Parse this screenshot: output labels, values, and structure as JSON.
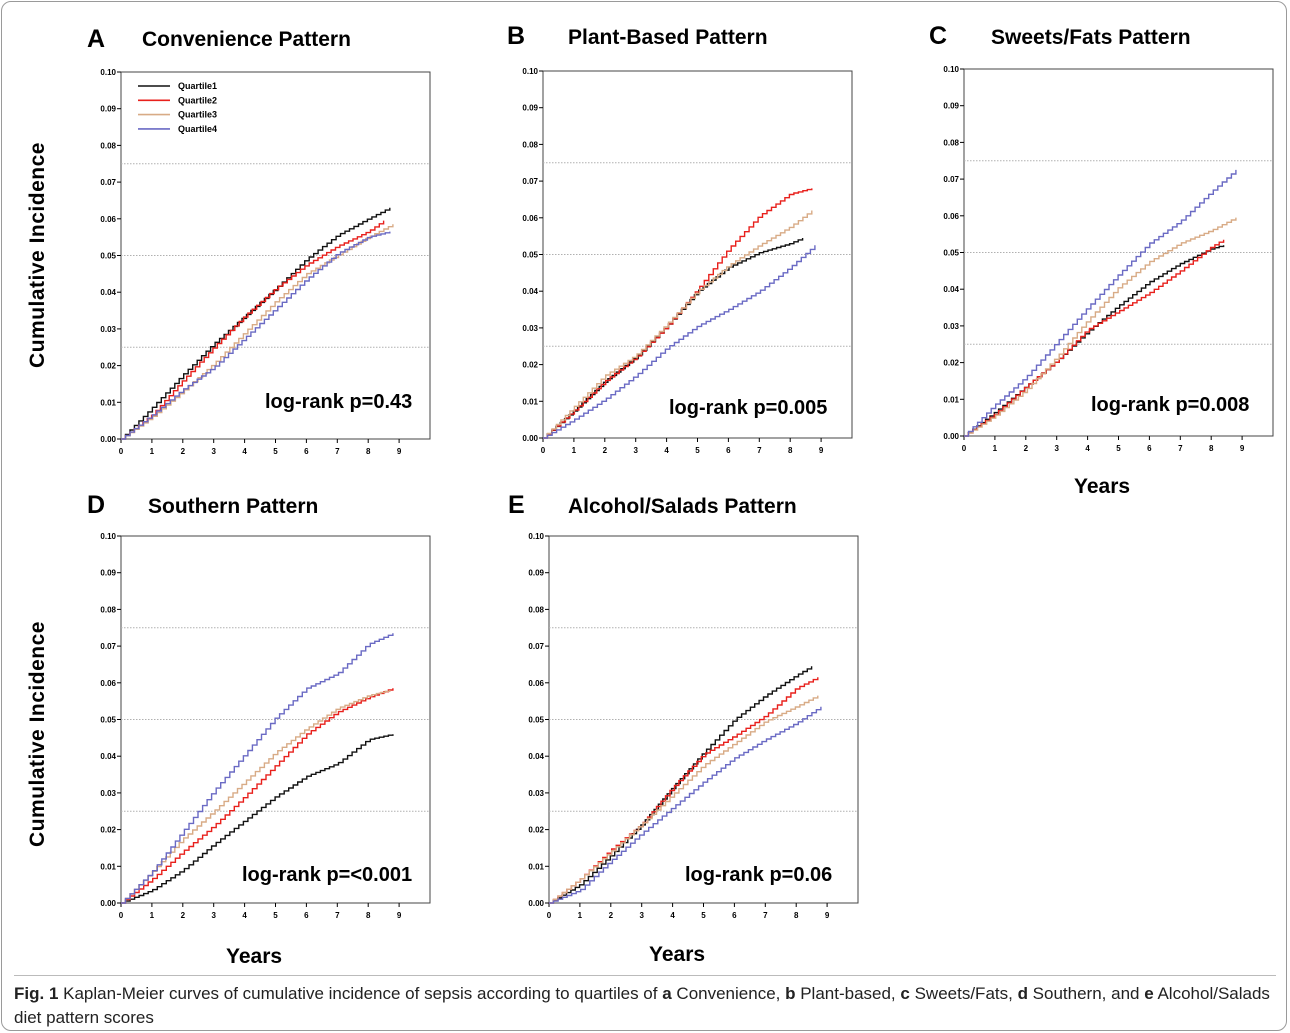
{
  "caption": {
    "label": "Fig. 1",
    "parts": [
      {
        "t": " Kaplan-Meier curves of cumulative incidence of sepsis according to quartiles of ",
        "b": false
      },
      {
        "t": "a",
        "b": true
      },
      {
        "t": " Convenience, ",
        "b": false
      },
      {
        "t": "b",
        "b": true
      },
      {
        "t": " Plant-based, ",
        "b": false
      },
      {
        "t": "c",
        "b": true
      },
      {
        "t": " Sweets/Fats, ",
        "b": false
      },
      {
        "t": "d",
        "b": true
      },
      {
        "t": " Southern, and ",
        "b": false
      },
      {
        "t": "e",
        "b": true
      },
      {
        "t": " Alcohol/Salads diet pattern scores",
        "b": false
      }
    ]
  },
  "axis_labels": {
    "y_top": "Cumulative Incidence",
    "y_bottom": "Cumulative Incidence",
    "x_c": "Years",
    "x_d": "Years",
    "x_e": "Years"
  },
  "colors": {
    "Quartile1": "#111111",
    "Quartile2": "#e8201c",
    "Quartile3": "#d8ab86",
    "Quartile4": "#6a6ac4",
    "refline": "#b0b0b0"
  },
  "chart_data": [
    {
      "id": "A",
      "type": "line",
      "title": "Convenience Pattern",
      "xlim": [
        0,
        10
      ],
      "ylim": [
        0,
        0.1
      ],
      "xticks": [
        "0",
        "1",
        "2",
        "3",
        "4",
        "5",
        "6",
        "7",
        "8",
        "9"
      ],
      "yticks": [
        "0.00",
        "0.01",
        "0.02",
        "0.03",
        "0.04",
        "0.05",
        "0.06",
        "0.07",
        "0.08",
        "0.09",
        "0.10"
      ],
      "reference_lines": [
        0.025,
        0.05,
        0.075
      ],
      "legend": [
        "Quartile1",
        "Quartile2",
        "Quartile3",
        "Quartile4"
      ],
      "legend_position": "top-left",
      "annotation": "log-rank p=0.43",
      "series": [
        {
          "name": "Quartile1",
          "x": [
            0,
            1,
            2,
            3,
            4,
            5,
            6,
            7,
            8,
            8.7
          ],
          "y": [
            0,
            0.0085,
            0.0175,
            0.026,
            0.0335,
            0.041,
            0.049,
            0.0555,
            0.06,
            0.063
          ]
        },
        {
          "name": "Quartile2",
          "x": [
            0,
            1,
            2,
            3,
            4,
            5,
            6,
            7,
            8,
            8.5
          ],
          "y": [
            0,
            0.0065,
            0.016,
            0.025,
            0.0335,
            0.041,
            0.0475,
            0.0525,
            0.0565,
            0.0595
          ]
        },
        {
          "name": "Quartile3",
          "x": [
            0,
            1,
            2,
            3,
            4,
            5,
            6,
            7,
            8,
            8.8
          ],
          "y": [
            0,
            0.006,
            0.013,
            0.0205,
            0.029,
            0.0375,
            0.045,
            0.05,
            0.055,
            0.0585
          ]
        },
        {
          "name": "Quartile4",
          "x": [
            0,
            1,
            2,
            3,
            4,
            5,
            6,
            7,
            8,
            8.7
          ],
          "y": [
            0,
            0.0065,
            0.0135,
            0.0195,
            0.0275,
            0.0355,
            0.0435,
            0.0505,
            0.055,
            0.0565
          ]
        }
      ]
    },
    {
      "id": "B",
      "type": "line",
      "title": "Plant-Based Pattern",
      "xlim": [
        0,
        10
      ],
      "ylim": [
        0,
        0.1
      ],
      "xticks": [
        "0",
        "1",
        "2",
        "3",
        "4",
        "5",
        "6",
        "7",
        "8",
        "9"
      ],
      "yticks": [
        "0.00",
        "0.01",
        "0.02",
        "0.03",
        "0.04",
        "0.05",
        "0.06",
        "0.07",
        "0.08",
        "0.09",
        "0.10"
      ],
      "reference_lines": [
        0.025,
        0.05,
        0.075
      ],
      "annotation": "log-rank p=0.005",
      "series": [
        {
          "name": "Quartile1",
          "x": [
            0,
            1,
            2,
            3,
            4,
            5,
            6,
            7,
            8,
            8.4
          ],
          "y": [
            0,
            0.0075,
            0.0155,
            0.022,
            0.0305,
            0.04,
            0.0465,
            0.0505,
            0.053,
            0.0545
          ]
        },
        {
          "name": "Quartile2",
          "x": [
            0,
            1,
            2,
            3,
            4,
            5,
            6,
            7,
            8,
            8.7
          ],
          "y": [
            0,
            0.0075,
            0.0155,
            0.022,
            0.0305,
            0.0405,
            0.0515,
            0.0605,
            0.0665,
            0.068
          ]
        },
        {
          "name": "Quartile3",
          "x": [
            0,
            1,
            2,
            3,
            4,
            5,
            6,
            7,
            8,
            8.7
          ],
          "y": [
            0,
            0.0085,
            0.017,
            0.0225,
            0.031,
            0.04,
            0.047,
            0.0525,
            0.0575,
            0.062
          ]
        },
        {
          "name": "Quartile4",
          "x": [
            0,
            1,
            2,
            3,
            4,
            5,
            6,
            7,
            8,
            8.8
          ],
          "y": [
            0,
            0.005,
            0.0105,
            0.017,
            0.0245,
            0.0305,
            0.035,
            0.04,
            0.0465,
            0.0525
          ]
        }
      ]
    },
    {
      "id": "C",
      "type": "line",
      "title": "Sweets/Fats Pattern",
      "xlim": [
        0,
        10
      ],
      "ylim": [
        0,
        0.1
      ],
      "xticks": [
        "0",
        "1",
        "2",
        "3",
        "4",
        "5",
        "6",
        "7",
        "8",
        "9"
      ],
      "yticks": [
        "0.00",
        "0.01",
        "0.02",
        "0.03",
        "0.04",
        "0.05",
        "0.06",
        "0.07",
        "0.08",
        "0.09",
        "0.10"
      ],
      "reference_lines": [
        0.025,
        0.05,
        0.075
      ],
      "annotation": "log-rank p=0.008",
      "series": [
        {
          "name": "Quartile1",
          "x": [
            0,
            1,
            2,
            3,
            4,
            5,
            6,
            7,
            8,
            8.4
          ],
          "y": [
            0,
            0.0065,
            0.0135,
            0.0205,
            0.0285,
            0.0355,
            0.042,
            0.047,
            0.051,
            0.052
          ]
        },
        {
          "name": "Quartile2",
          "x": [
            0,
            1,
            2,
            3,
            4,
            5,
            6,
            7,
            8,
            8.4
          ],
          "y": [
            0,
            0.006,
            0.0135,
            0.0205,
            0.029,
            0.034,
            0.039,
            0.045,
            0.0515,
            0.0535
          ]
        },
        {
          "name": "Quartile3",
          "x": [
            0,
            1,
            2,
            3,
            4,
            5,
            6,
            7,
            8,
            8.8
          ],
          "y": [
            0,
            0.0055,
            0.0125,
            0.0215,
            0.0315,
            0.0405,
            0.0475,
            0.0525,
            0.056,
            0.0595
          ]
        },
        {
          "name": "Quartile4",
          "x": [
            0,
            1,
            2,
            3,
            4,
            5,
            6,
            7,
            8,
            8.8
          ],
          "y": [
            0,
            0.0085,
            0.016,
            0.0255,
            0.035,
            0.044,
            0.0525,
            0.0585,
            0.0665,
            0.0725
          ]
        }
      ]
    },
    {
      "id": "D",
      "type": "line",
      "title": "Southern Pattern",
      "xlim": [
        0,
        10
      ],
      "ylim": [
        0,
        0.1
      ],
      "xticks": [
        "0",
        "1",
        "2",
        "3",
        "4",
        "5",
        "6",
        "7",
        "8",
        "9"
      ],
      "yticks": [
        "0.00",
        "0.01",
        "0.02",
        "0.03",
        "0.04",
        "0.05",
        "0.06",
        "0.07",
        "0.08",
        "0.09",
        "0.10"
      ],
      "reference_lines": [
        0.025,
        0.05,
        0.075
      ],
      "annotation": "log-rank p=<0.001",
      "series": [
        {
          "name": "Quartile1",
          "x": [
            0,
            1,
            2,
            3,
            4,
            5,
            6,
            7,
            8,
            8.8
          ],
          "y": [
            0,
            0.0035,
            0.009,
            0.016,
            0.0225,
            0.029,
            0.0345,
            0.038,
            0.0445,
            0.046
          ]
        },
        {
          "name": "Quartile2",
          "x": [
            0,
            1,
            2,
            3,
            4,
            5,
            6,
            7,
            8,
            8.8
          ],
          "y": [
            0,
            0.0065,
            0.014,
            0.021,
            0.029,
            0.0375,
            0.046,
            0.052,
            0.056,
            0.0585
          ]
        },
        {
          "name": "Quartile3",
          "x": [
            0,
            1,
            2,
            3,
            4,
            5,
            6,
            7,
            8,
            8.7
          ],
          "y": [
            0,
            0.0085,
            0.0175,
            0.025,
            0.033,
            0.041,
            0.0475,
            0.053,
            0.0565,
            0.058
          ]
        },
        {
          "name": "Quartile4",
          "x": [
            0,
            1,
            2,
            3,
            4,
            5,
            6,
            7,
            8,
            8.8
          ],
          "y": [
            0,
            0.0085,
            0.0195,
            0.0305,
            0.0405,
            0.0505,
            0.0585,
            0.0625,
            0.0705,
            0.0735
          ]
        }
      ]
    },
    {
      "id": "E",
      "type": "line",
      "title": "Alcohol/Salads Pattern",
      "xlim": [
        0,
        10
      ],
      "ylim": [
        0,
        0.1
      ],
      "xticks": [
        "0",
        "1",
        "2",
        "3",
        "4",
        "5",
        "6",
        "7",
        "8",
        "9"
      ],
      "yticks": [
        "0.00",
        "0.01",
        "0.02",
        "0.03",
        "0.04",
        "0.05",
        "0.06",
        "0.07",
        "0.08",
        "0.09",
        "0.10"
      ],
      "reference_lines": [
        0.025,
        0.05,
        0.075
      ],
      "annotation": "log-rank p=0.06",
      "series": [
        {
          "name": "Quartile1",
          "x": [
            0,
            1,
            2,
            3,
            4,
            5,
            6,
            7,
            8,
            8.5
          ],
          "y": [
            0,
            0.005,
            0.013,
            0.0215,
            0.0315,
            0.041,
            0.05,
            0.0565,
            0.062,
            0.0645
          ]
        },
        {
          "name": "Quartile2",
          "x": [
            0,
            1,
            2,
            3,
            4,
            5,
            6,
            7,
            8,
            8.7
          ],
          "y": [
            0,
            0.0065,
            0.0145,
            0.0215,
            0.0315,
            0.0405,
            0.0455,
            0.051,
            0.0585,
            0.0615
          ]
        },
        {
          "name": "Quartile3",
          "x": [
            0,
            1,
            2,
            3,
            4,
            5,
            6,
            7,
            8,
            8.7
          ],
          "y": [
            0,
            0.0065,
            0.014,
            0.0215,
            0.0295,
            0.0375,
            0.0435,
            0.0495,
            0.0535,
            0.0565
          ]
        },
        {
          "name": "Quartile4",
          "x": [
            0,
            1,
            2,
            3,
            4,
            5,
            6,
            7,
            8,
            8.8
          ],
          "y": [
            0,
            0.0035,
            0.0115,
            0.019,
            0.026,
            0.033,
            0.0395,
            0.0445,
            0.049,
            0.0535
          ]
        }
      ]
    }
  ]
}
